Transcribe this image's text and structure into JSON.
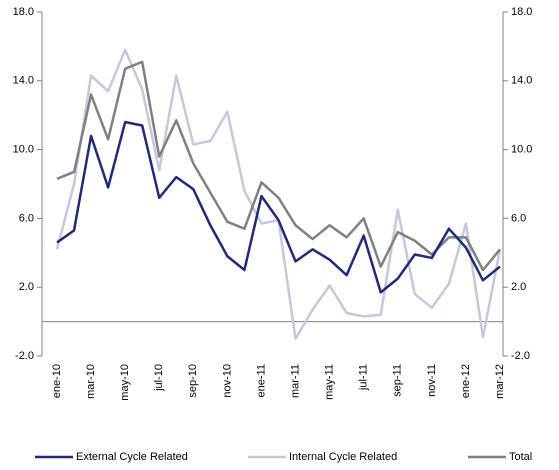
{
  "chart_data": {
    "type": "line",
    "categories": [
      "ene-10",
      null,
      "mar-10",
      null,
      "may-10",
      null,
      "jul-10",
      null,
      "sep-10",
      null,
      "nov-10",
      null,
      "ene-11",
      null,
      "mar-11",
      null,
      "may-11",
      null,
      "jul-11",
      null,
      "sep-11",
      null,
      "nov-11",
      null,
      "ene-12",
      null,
      "mar-12"
    ],
    "series": [
      {
        "name": "External Cycle Related",
        "color": "#1f2a7a",
        "values": [
          4.6,
          5.3,
          10.8,
          7.8,
          11.6,
          11.4,
          7.2,
          8.4,
          7.7,
          5.6,
          3.8,
          3.0,
          7.3,
          5.9,
          3.5,
          4.2,
          3.6,
          2.7,
          5.0,
          1.7,
          2.5,
          3.9,
          3.7,
          5.4,
          4.3,
          2.4,
          3.2
        ]
      },
      {
        "name": "Internal Cycle Related",
        "color": "#c6c6df",
        "values": [
          4.2,
          8.0,
          14.3,
          13.4,
          15.8,
          13.5,
          8.8,
          14.3,
          10.3,
          10.5,
          12.2,
          7.6,
          5.7,
          5.9,
          -1.0,
          0.7,
          2.1,
          0.5,
          0.3,
          0.4,
          6.5,
          1.6,
          0.8,
          2.2,
          5.7,
          -0.9,
          4.2
        ]
      },
      {
        "name": "Total",
        "color": "#808080",
        "values": [
          8.3,
          8.7,
          13.2,
          10.6,
          14.7,
          15.1,
          9.6,
          11.7,
          9.2,
          7.5,
          5.8,
          5.4,
          8.1,
          7.2,
          5.6,
          4.8,
          5.6,
          4.9,
          6.0,
          3.2,
          5.2,
          4.7,
          3.9,
          4.9,
          4.9,
          3.0,
          4.2
        ]
      }
    ],
    "ylim": [
      -2,
      18
    ],
    "yticks": [
      {
        "value": -2,
        "label": "-2.0"
      },
      {
        "value": 2,
        "label": "2.0"
      },
      {
        "value": 6,
        "label": "6.0"
      },
      {
        "value": 10,
        "label": "10.0"
      },
      {
        "value": 14,
        "label": "14.0"
      },
      {
        "value": 18,
        "label": "18.0"
      }
    ],
    "y2lim": [
      -2,
      18
    ],
    "y2ticks": [
      {
        "value": -2,
        "label": "-2.0"
      },
      {
        "value": 2,
        "label": "2.0"
      },
      {
        "value": 6,
        "label": "6.0"
      },
      {
        "value": 10,
        "label": "10.0"
      },
      {
        "value": 14,
        "label": "14.0"
      },
      {
        "value": 18,
        "label": "18.0"
      }
    ],
    "grid": false,
    "legend": "bottom"
  }
}
